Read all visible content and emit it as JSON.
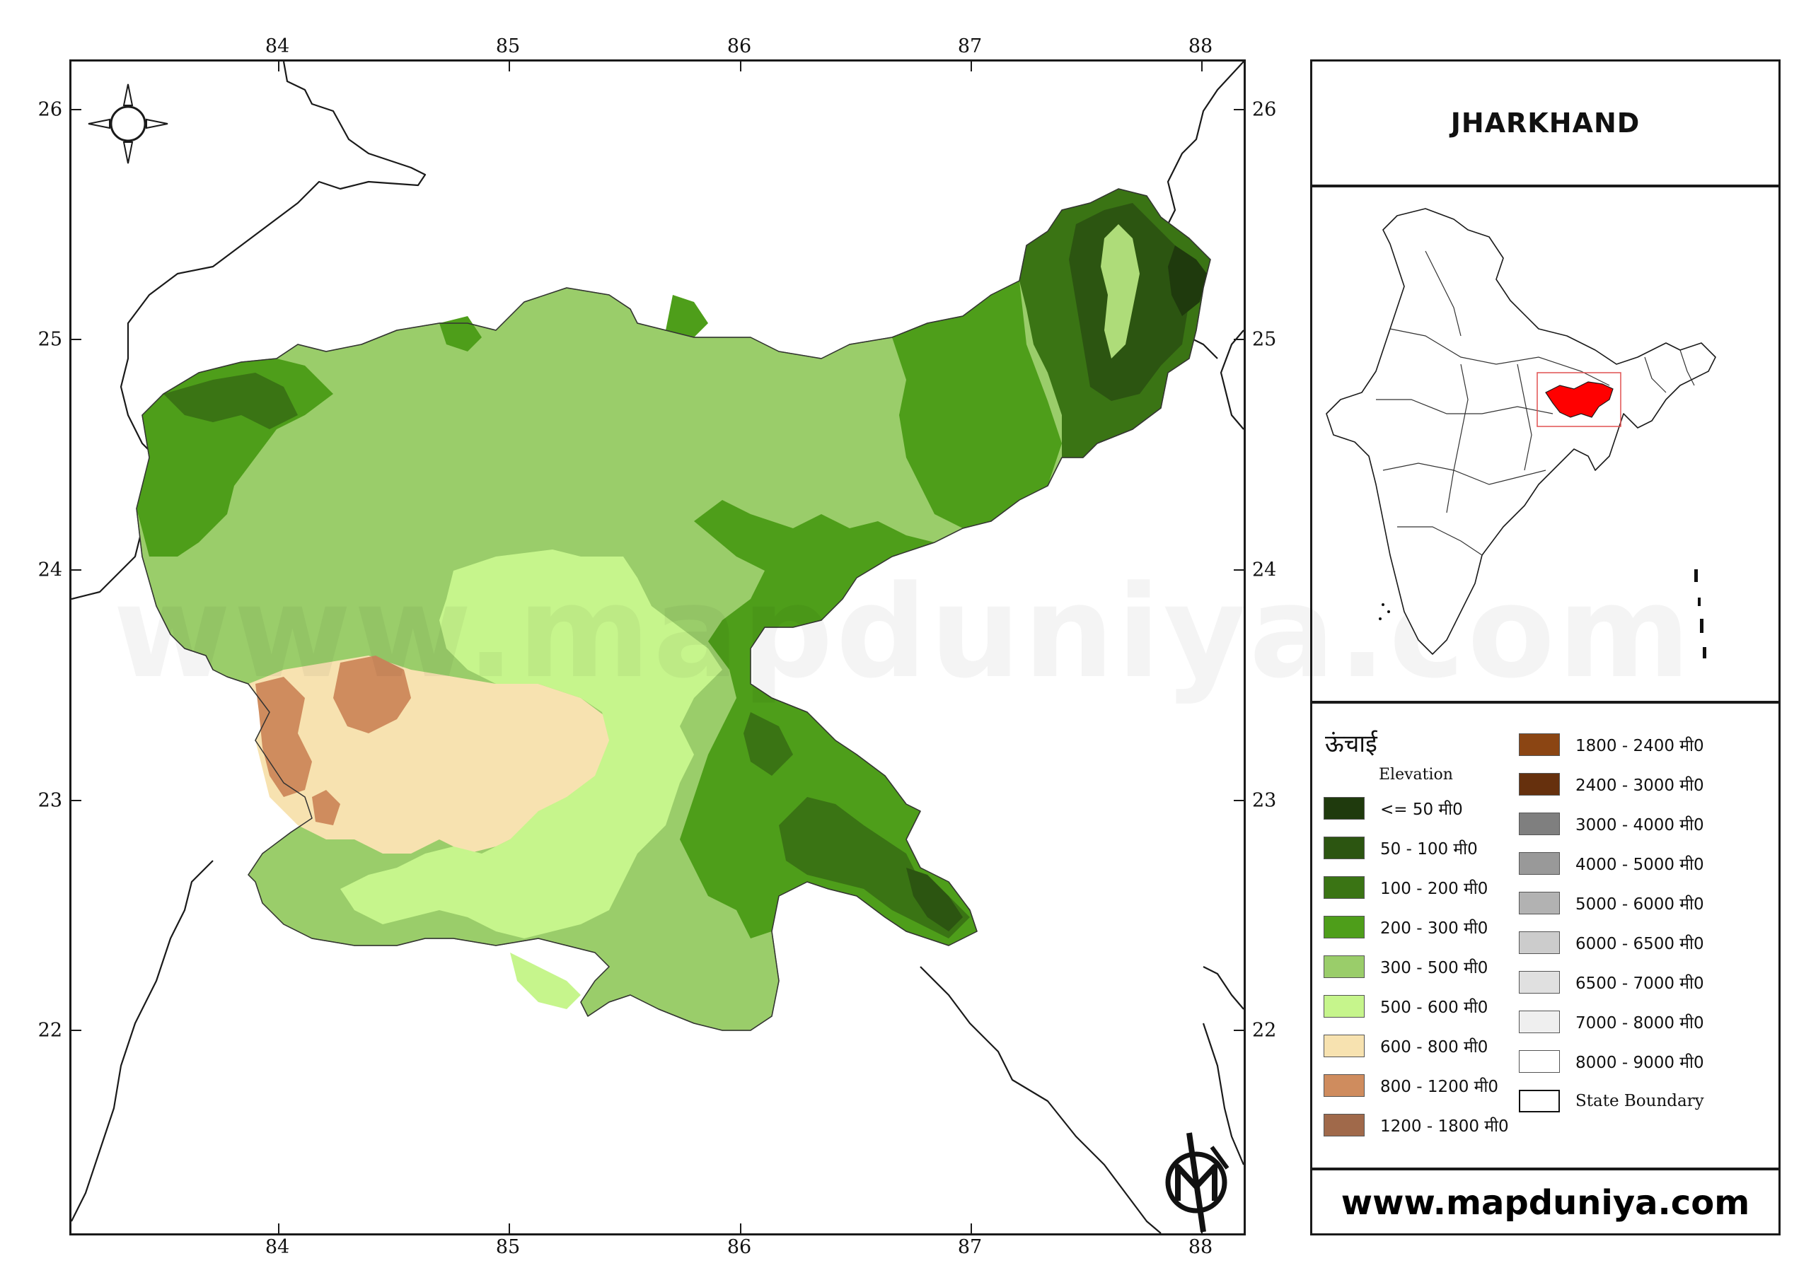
{
  "title": "JHARKHAND",
  "website": "www.mapduniya.com",
  "watermark": "www.mapduniya.com",
  "map": {
    "longitude_ticks_top": [
      "84",
      "85",
      "86",
      "87",
      "88"
    ],
    "longitude_ticks_bottom": [
      "84",
      "85",
      "86",
      "87",
      "88"
    ],
    "latitude_ticks_left": [
      "26",
      "25",
      "24",
      "23",
      "22"
    ],
    "latitude_ticks_right": [
      "26",
      "25",
      "24",
      "23",
      "22"
    ],
    "inset_highlight_color": "#ff0000",
    "icons": [
      "compass-rose-icon",
      "mapduniya-logo-icon"
    ]
  },
  "legend": {
    "title": "ऊंचाई",
    "subtitle": "Elevation",
    "classes": [
      {
        "label": "<= 50 मी0",
        "color": "#1f3a0d"
      },
      {
        "label": "50 - 100 मी0",
        "color": "#2c5511"
      },
      {
        "label": "100 - 200 मी0",
        "color": "#3a7414"
      },
      {
        "label": "200 - 300 मी0",
        "color": "#4e9e1a"
      },
      {
        "label": "300 - 500 मी0",
        "color": "#9acd6a"
      },
      {
        "label": "500 - 600 मी0",
        "color": "#c6f58c"
      },
      {
        "label": "600 - 800 मी0",
        "color": "#f7e2b0"
      },
      {
        "label": "800 - 1200 मी0",
        "color": "#cf8c5e"
      },
      {
        "label": "1200 - 1800 मी0",
        "color": "#a0694a"
      },
      {
        "label": "1800 - 2400 मी0",
        "color": "#8b4513"
      },
      {
        "label": "2400 - 3000 मी0",
        "color": "#66300d"
      },
      {
        "label": "3000 - 4000 मी0",
        "color": "#7f7f7f"
      },
      {
        "label": "4000 - 5000 मी0",
        "color": "#999999"
      },
      {
        "label": "5000 - 6000 मी0",
        "color": "#b2b2b2"
      },
      {
        "label": "6000 - 6500 मी0",
        "color": "#cccccc"
      },
      {
        "label": "6500 - 7000 मी0",
        "color": "#e0e0e0"
      },
      {
        "label": "7000 - 8000 मी0",
        "color": "#efefef"
      },
      {
        "label": "8000 - 9000 मी0",
        "color": "#ffffff"
      }
    ],
    "boundary_label": "State Boundary"
  }
}
